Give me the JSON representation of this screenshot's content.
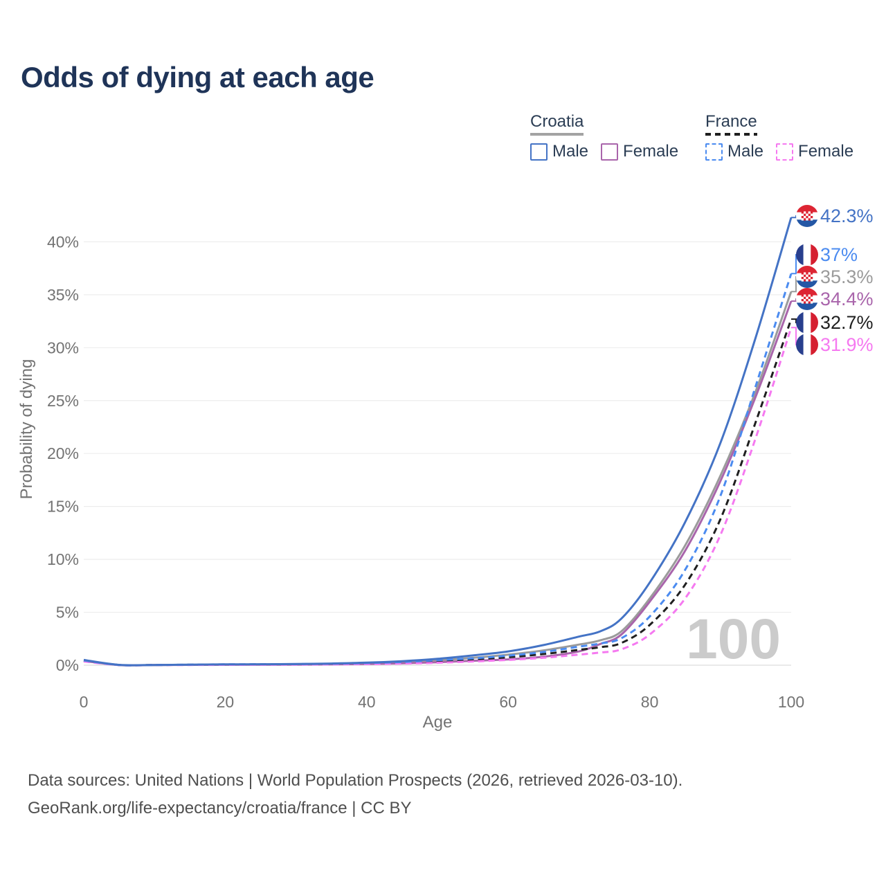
{
  "title": "Odds of dying at each age",
  "legend": {
    "croatia": {
      "name": "Croatia",
      "male": "Male",
      "female": "Female"
    },
    "france": {
      "name": "France",
      "male": "Male",
      "female": "Female"
    }
  },
  "footer": {
    "line1": "Data sources: United Nations | World Population Prospects (2026, retrieved 2026-03-10).",
    "line2": "GeoRank.org/life-expectancy/croatia/france | CC BY"
  },
  "colors": {
    "title": "#1f3458",
    "legend_text": "#2b3d54",
    "axis_text": "#737373",
    "grid": "#ededed",
    "zero_line": "#e2e2e2",
    "watermark": "#cbcbcb",
    "footer_text": "#4f4f4f",
    "croatia_male": "#4473c5",
    "croatia_both": "#9b9b9b",
    "croatia_female": "#a965ab",
    "france_male": "#4b8bf0",
    "france_both": "#1f1f1f",
    "france_female": "#f579f0"
  },
  "flag_colors": {
    "croatia_red": "#dd2533",
    "croatia_blue": "#2457a5",
    "france_blue": "#293f8e",
    "france_red": "#d51f30",
    "white": "#ffffff"
  },
  "chart_data": {
    "type": "line",
    "title": "Odds of dying at each age",
    "xlabel": "Age",
    "ylabel": "Probability of dying",
    "xlim": [
      0,
      100
    ],
    "ylim_pct": [
      0,
      43.5
    ],
    "grid": true,
    "legend_position": "top-right",
    "x_ticks": [
      0,
      20,
      40,
      60,
      80,
      100
    ],
    "y_ticks": [
      [
        0,
        "0%"
      ],
      [
        5,
        "5%"
      ],
      [
        10,
        "10%"
      ],
      [
        15,
        "15%"
      ],
      [
        20,
        "20%"
      ],
      [
        25,
        "25%"
      ],
      [
        30,
        "30%"
      ],
      [
        35,
        "35%"
      ],
      [
        40,
        "40%"
      ]
    ],
    "hover_age_label": "100",
    "x": [
      0,
      5,
      10,
      15,
      20,
      25,
      30,
      35,
      40,
      45,
      50,
      55,
      60,
      65,
      70,
      73,
      76,
      80,
      85,
      90,
      95,
      100
    ],
    "series": [
      {
        "id": "croatia-male",
        "name": "Croatia Male",
        "flag": "croatia",
        "dashed": false,
        "color_key": "croatia_male",
        "end_label": "42.3%",
        "values": [
          0.5,
          0.03,
          0.02,
          0.05,
          0.08,
          0.09,
          0.11,
          0.16,
          0.24,
          0.38,
          0.6,
          0.92,
          1.3,
          1.9,
          2.7,
          3.2,
          4.4,
          7.8,
          13.5,
          21.0,
          31.0,
          42.3
        ]
      },
      {
        "id": "france-male",
        "name": "France Male",
        "flag": "france",
        "dashed": true,
        "color_key": "france_male",
        "end_label": "37%",
        "values": [
          0.45,
          0.02,
          0.02,
          0.05,
          0.08,
          0.09,
          0.1,
          0.14,
          0.2,
          0.3,
          0.48,
          0.65,
          0.9,
          1.25,
          1.75,
          2.05,
          2.55,
          4.6,
          9.0,
          16.0,
          26.4,
          37.0
        ]
      },
      {
        "id": "croatia-both",
        "name": "Croatia",
        "flag": "croatia",
        "dashed": false,
        "color_key": "croatia_both",
        "end_label": "35.3%",
        "values": [
          0.45,
          0.02,
          0.02,
          0.04,
          0.06,
          0.07,
          0.09,
          0.12,
          0.18,
          0.28,
          0.44,
          0.7,
          1.0,
          1.4,
          1.95,
          2.35,
          3.2,
          6.3,
          11.3,
          17.9,
          25.9,
          35.3
        ]
      },
      {
        "id": "croatia-female",
        "name": "Croatia Female",
        "flag": "croatia",
        "dashed": false,
        "color_key": "croatia_female",
        "end_label": "34.4%",
        "values": [
          0.4,
          0.02,
          0.01,
          0.03,
          0.04,
          0.05,
          0.06,
          0.08,
          0.12,
          0.18,
          0.28,
          0.42,
          0.55,
          0.8,
          1.3,
          2.0,
          2.9,
          6.0,
          10.8,
          17.4,
          25.4,
          34.4
        ]
      },
      {
        "id": "france-both",
        "name": "France",
        "flag": "france",
        "dashed": true,
        "color_key": "france_both",
        "end_label": "32.7%",
        "values": [
          0.4,
          0.02,
          0.02,
          0.04,
          0.06,
          0.07,
          0.08,
          0.11,
          0.16,
          0.24,
          0.38,
          0.55,
          0.75,
          1.05,
          1.45,
          1.7,
          2.1,
          3.8,
          7.6,
          13.8,
          23.0,
          32.7
        ]
      },
      {
        "id": "france-female",
        "name": "France Female",
        "flag": "france",
        "dashed": true,
        "color_key": "france_female",
        "end_label": "31.9%",
        "values": [
          0.35,
          0.01,
          0.01,
          0.02,
          0.03,
          0.04,
          0.05,
          0.07,
          0.1,
          0.15,
          0.23,
          0.35,
          0.5,
          0.7,
          1.0,
          1.2,
          1.5,
          2.9,
          6.3,
          12.3,
          21.5,
          31.9
        ]
      }
    ]
  }
}
